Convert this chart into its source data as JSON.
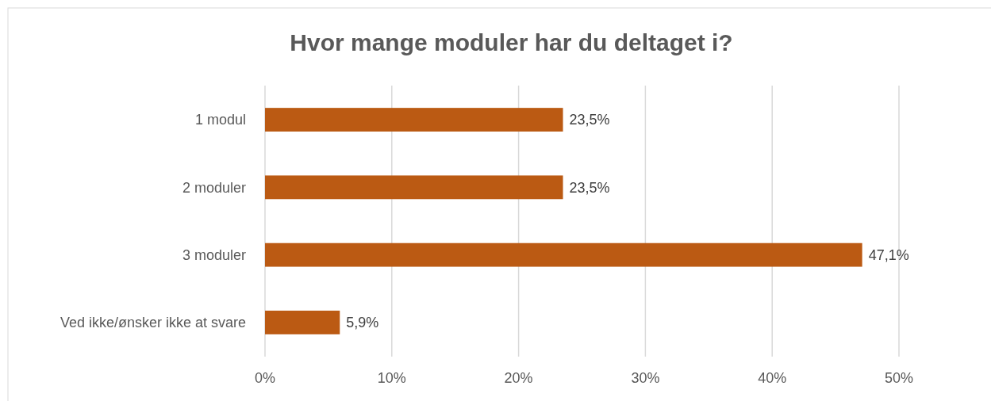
{
  "chart_data": {
    "type": "bar",
    "orientation": "horizontal",
    "title": "Hvor mange moduler har du deltaget i?",
    "categories": [
      "1 modul",
      "2 moduler",
      "3 moduler",
      "Ved ikke/ønsker ikke at svare"
    ],
    "values": [
      23.5,
      23.5,
      47.1,
      5.9
    ],
    "value_labels": [
      "23,5%",
      "23,5%",
      "47,1%",
      "5,9%"
    ],
    "color": "#bb5a13",
    "xlim": [
      0,
      50
    ],
    "xticks": [
      {
        "value": 0,
        "label": "0%"
      },
      {
        "value": 10,
        "label": "10%"
      },
      {
        "value": 20,
        "label": "20%"
      },
      {
        "value": 30,
        "label": "30%"
      },
      {
        "value": 40,
        "label": "40%"
      },
      {
        "value": 50,
        "label": "50%"
      }
    ],
    "grid": "x"
  }
}
